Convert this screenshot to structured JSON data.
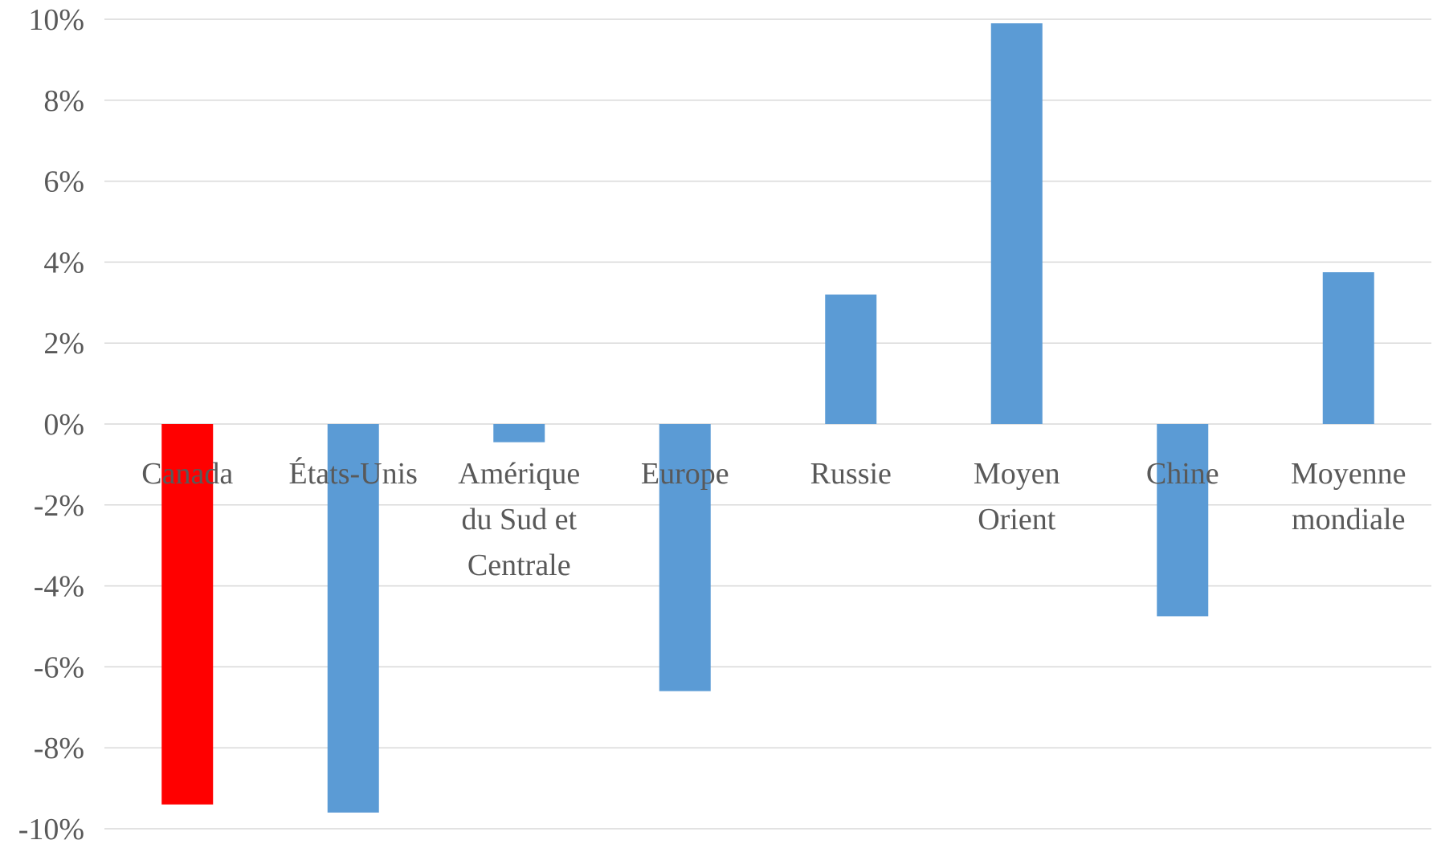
{
  "chart_data": {
    "type": "bar",
    "categories": [
      [
        "Canada"
      ],
      [
        "États-Unis"
      ],
      [
        "Amérique",
        "du Sud et",
        "Centrale"
      ],
      [
        "Europe"
      ],
      [
        "Russie"
      ],
      [
        "Moyen",
        "Orient"
      ],
      [
        "Chine"
      ],
      [
        "Moyenne",
        "mondiale"
      ]
    ],
    "values": [
      -9.4,
      -9.6,
      -0.45,
      -6.6,
      3.2,
      9.9,
      -4.75,
      3.75
    ],
    "bar_colors": [
      "#ff0000",
      "#5b9bd5",
      "#5b9bd5",
      "#5b9bd5",
      "#5b9bd5",
      "#5b9bd5",
      "#5b9bd5",
      "#5b9bd5"
    ],
    "ylim": [
      -10,
      10
    ],
    "y_ticks": [
      10,
      8,
      6,
      4,
      2,
      0,
      -2,
      -4,
      -6,
      -8,
      -10
    ],
    "y_tick_labels": [
      "10%",
      "8%",
      "6%",
      "4%",
      "2%",
      "0%",
      "-2%",
      "-4%",
      "-6%",
      "-8%",
      "-10%"
    ],
    "title": "",
    "xlabel": "",
    "ylabel": "",
    "grid": true,
    "legend": "none",
    "gridline_color": "#d9d9d9",
    "text_color": "#595959"
  }
}
